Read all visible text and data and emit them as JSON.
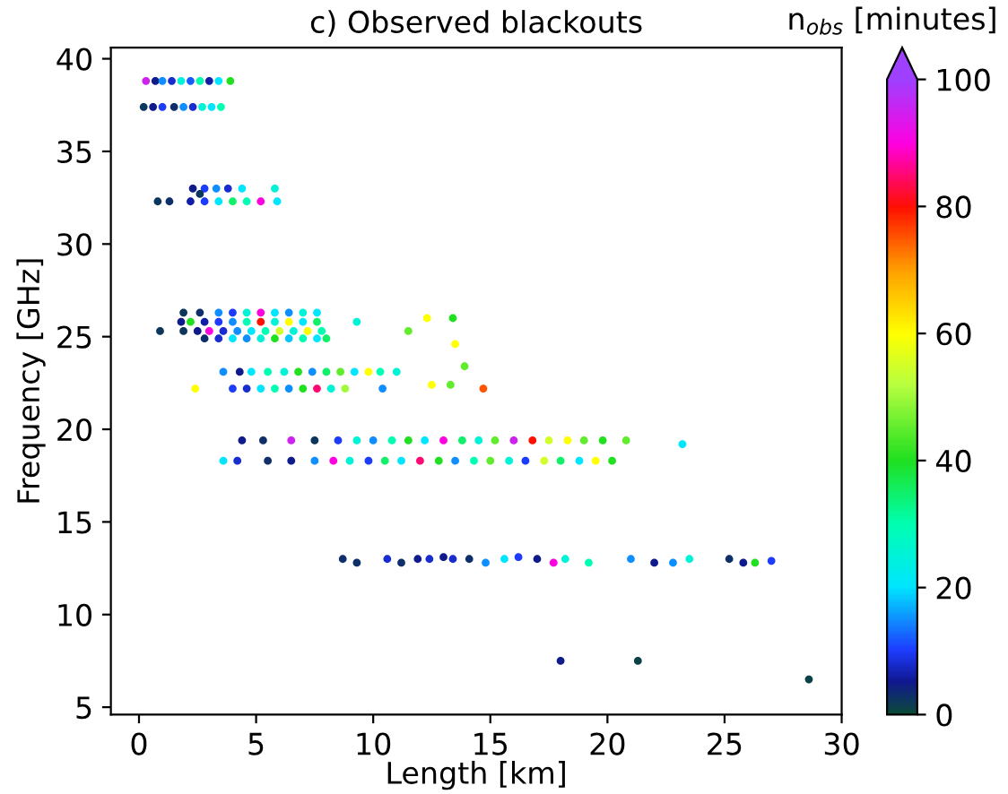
{
  "chart_data": {
    "type": "scatter",
    "title": "c) Observed blackouts",
    "xlabel": "Length [km]",
    "ylabel": "Frequency [GHz]",
    "clabel": "n$_{obs}$ [minutes]",
    "x": [
      0.3,
      0.7,
      1.0,
      1.4,
      1.8,
      2.2,
      2.6,
      3.0,
      3.4,
      3.9,
      0.2,
      0.6,
      1.0,
      1.5,
      1.9,
      2.3,
      2.7,
      3.1,
      3.5,
      2.3,
      2.8,
      3.3,
      3.8,
      4.4,
      5.8,
      2.6,
      0.8,
      1.3,
      2.2,
      2.8,
      3.4,
      4.0,
      4.6,
      5.2,
      5.9,
      1.9,
      2.6,
      3.4,
      4.0,
      4.6,
      5.2,
      5.8,
      6.4,
      7.0,
      7.6,
      1.8,
      2.2,
      2.8,
      3.4,
      4.0,
      4.6,
      5.2,
      5.8,
      6.4,
      7.0,
      7.6,
      9.3,
      12.3,
      13.4,
      0.9,
      1.9,
      2.5,
      3.0,
      3.6,
      4.2,
      4.8,
      5.4,
      6.0,
      6.6,
      7.2,
      7.8,
      11.5,
      2.8,
      3.4,
      4.0,
      4.6,
      5.2,
      5.8,
      6.4,
      7.0,
      7.6,
      8.0,
      13.5,
      3.6,
      4.3,
      4.8,
      5.5,
      6.2,
      6.8,
      7.4,
      8.0,
      8.6,
      9.2,
      9.8,
      10.3,
      11.0,
      13.9,
      2.4,
      4.0,
      4.6,
      5.2,
      5.8,
      6.4,
      7.0,
      7.6,
      8.2,
      8.8,
      10.4,
      12.5,
      13.3,
      14.7,
      4.4,
      5.3,
      6.5,
      7.5,
      8.5,
      9.3,
      10.0,
      10.8,
      11.5,
      12.2,
      13.0,
      13.8,
      14.5,
      15.2,
      16.0,
      16.8,
      17.5,
      18.3,
      19.0,
      19.8,
      20.8,
      23.2,
      3.6,
      4.2,
      5.5,
      6.5,
      7.5,
      8.3,
      9.0,
      9.8,
      10.5,
      11.2,
      12.0,
      12.8,
      13.5,
      14.3,
      15.0,
      15.8,
      16.5,
      17.3,
      18.0,
      18.8,
      19.5,
      20.2,
      8.7,
      9.3,
      10.6,
      11.2,
      11.9,
      12.4,
      13.0,
      13.4,
      14.1,
      14.8,
      15.6,
      16.2,
      17.0,
      17.7,
      18.2,
      19.2,
      21.0,
      22.0,
      22.8,
      23.5,
      25.2,
      25.8,
      26.3,
      27.0,
      18.0,
      21.3,
      28.6
    ],
    "values": [
      38.8,
      38.8,
      38.8,
      38.8,
      38.8,
      38.8,
      38.8,
      38.8,
      38.8,
      38.8,
      37.4,
      37.4,
      37.4,
      37.4,
      37.4,
      37.4,
      37.4,
      37.4,
      37.4,
      33.0,
      33.0,
      33.0,
      33.0,
      33.0,
      33.0,
      32.7,
      32.3,
      32.3,
      32.3,
      32.3,
      32.3,
      32.3,
      32.3,
      32.3,
      32.3,
      26.3,
      26.3,
      26.3,
      26.3,
      26.3,
      26.3,
      26.3,
      26.3,
      26.3,
      26.3,
      25.8,
      25.8,
      25.8,
      25.8,
      25.8,
      25.8,
      25.8,
      25.8,
      25.8,
      25.8,
      25.8,
      25.8,
      26.0,
      26.0,
      25.3,
      25.3,
      25.3,
      25.3,
      25.3,
      25.3,
      25.3,
      25.3,
      25.3,
      25.3,
      25.3,
      25.3,
      25.3,
      24.9,
      24.9,
      24.9,
      24.9,
      24.9,
      24.9,
      24.9,
      24.9,
      24.9,
      24.9,
      24.6,
      23.1,
      23.1,
      23.1,
      23.1,
      23.1,
      23.1,
      23.1,
      23.1,
      23.1,
      23.1,
      23.1,
      23.1,
      23.1,
      23.4,
      22.2,
      22.2,
      22.2,
      22.2,
      22.2,
      22.2,
      22.2,
      22.2,
      22.2,
      22.2,
      22.2,
      22.4,
      22.4,
      22.2,
      19.4,
      19.4,
      19.4,
      19.4,
      19.4,
      19.4,
      19.4,
      19.4,
      19.4,
      19.4,
      19.4,
      19.4,
      19.4,
      19.4,
      19.4,
      19.4,
      19.4,
      19.4,
      19.4,
      19.4,
      19.4,
      19.2,
      18.3,
      18.3,
      18.3,
      18.3,
      18.3,
      18.3,
      18.3,
      18.3,
      18.3,
      18.3,
      18.3,
      18.3,
      18.3,
      18.3,
      18.3,
      18.3,
      18.3,
      18.3,
      18.3,
      18.3,
      18.3,
      18.3,
      13.0,
      12.8,
      13.0,
      12.8,
      13.0,
      13.0,
      13.1,
      13.0,
      13.0,
      12.8,
      13.0,
      13.1,
      13.0,
      12.8,
      13.0,
      12.8,
      13.0,
      12.8,
      12.8,
      13.0,
      13.0,
      12.8,
      12.8,
      12.9,
      7.5,
      7.5,
      6.5
    ],
    "cvalues": [
      95,
      5,
      15,
      8,
      25,
      12,
      30,
      6,
      20,
      40,
      2,
      5,
      10,
      3,
      15,
      8,
      25,
      20,
      30,
      5,
      10,
      15,
      8,
      20,
      25,
      2,
      2,
      3,
      6,
      10,
      20,
      35,
      30,
      90,
      20,
      2,
      3,
      15,
      10,
      25,
      90,
      20,
      15,
      25,
      20,
      5,
      40,
      6,
      10,
      15,
      30,
      80,
      25,
      60,
      20,
      35,
      25,
      60,
      40,
      2,
      2,
      5,
      90,
      8,
      15,
      20,
      30,
      55,
      25,
      60,
      30,
      45,
      3,
      8,
      20,
      15,
      25,
      40,
      18,
      30,
      20,
      35,
      60,
      15,
      5,
      20,
      30,
      25,
      40,
      15,
      35,
      45,
      20,
      60,
      30,
      25,
      45,
      60,
      10,
      8,
      20,
      30,
      15,
      40,
      85,
      25,
      50,
      15,
      60,
      45,
      75,
      5,
      3,
      95,
      2,
      10,
      25,
      15,
      30,
      40,
      20,
      90,
      35,
      25,
      45,
      95,
      80,
      55,
      60,
      45,
      40,
      45,
      20,
      20,
      8,
      3,
      5,
      15,
      90,
      25,
      10,
      35,
      20,
      85,
      40,
      15,
      30,
      45,
      25,
      10,
      55,
      35,
      20,
      60,
      40,
      3,
      3,
      8,
      3,
      5,
      8,
      5,
      8,
      3,
      15,
      20,
      10,
      5,
      90,
      25,
      30,
      15,
      5,
      15,
      25,
      3,
      5,
      40,
      10,
      5,
      1,
      1
    ],
    "marker": "circle",
    "xlim": [
      -1.2,
      30
    ],
    "xticks": [
      0,
      5,
      10,
      15,
      20,
      25,
      30
    ],
    "ylim": [
      4.6,
      40.6
    ],
    "yticks": [
      5,
      10,
      15,
      20,
      25,
      30,
      35,
      40
    ],
    "clim": [
      0,
      100
    ],
    "cticks": [
      0,
      20,
      40,
      60,
      80,
      100
    ]
  }
}
